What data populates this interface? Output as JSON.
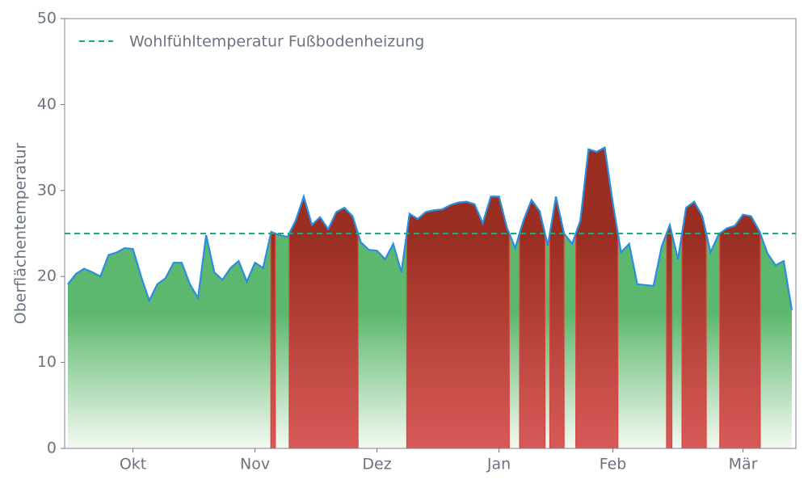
{
  "chart_data": {
    "type": "area",
    "ylabel": "Oberflächentemperatur",
    "categories": [
      null,
      null,
      null,
      null,
      null,
      null,
      null,
      null,
      "Okt",
      null,
      null,
      null,
      null,
      null,
      null,
      null,
      null,
      null,
      null,
      null,
      null,
      null,
      null,
      "Nov",
      null,
      null,
      null,
      null,
      null,
      null,
      null,
      null,
      null,
      null,
      null,
      null,
      null,
      null,
      "Dez",
      null,
      null,
      null,
      null,
      null,
      null,
      null,
      null,
      null,
      null,
      null,
      null,
      null,
      null,
      "Jan",
      null,
      null,
      null,
      null,
      null,
      null,
      null,
      null,
      null,
      null,
      null,
      null,
      null,
      "Feb",
      null,
      null,
      null,
      null,
      null,
      null,
      null,
      null,
      null,
      null,
      null,
      null,
      null,
      null,
      null,
      "Mär",
      null,
      null,
      null,
      null,
      null,
      null
    ],
    "series": [
      {
        "color": "#2a8ee0",
        "values": [
          19.1,
          20.3,
          20.9,
          20.5,
          20.0,
          22.5,
          22.8,
          23.3,
          23.2,
          20.0,
          17.2,
          19.1,
          19.8,
          21.6,
          21.6,
          19.1,
          17.5,
          24.8,
          20.5,
          19.6,
          21.0,
          21.8,
          19.4,
          21.6,
          21.0,
          25.2,
          24.8,
          24.6,
          26.5,
          29.3,
          26.0,
          26.9,
          25.5,
          27.5,
          28.0,
          27.0,
          24.0,
          23.1,
          23.0,
          22.0,
          23.8,
          20.5,
          27.3,
          26.7,
          27.5,
          27.7,
          27.8,
          28.3,
          28.6,
          28.7,
          28.4,
          26.2,
          29.3,
          29.3,
          25.6,
          23.3,
          26.5,
          28.9,
          27.6,
          23.6,
          29.3,
          25.0,
          23.8,
          26.5,
          34.8,
          34.5,
          35.0,
          28.5,
          22.8,
          23.8,
          19.1,
          19.0,
          18.9,
          23.5,
          26.0,
          22.0,
          28.0,
          28.7,
          27.0,
          22.8,
          24.9,
          25.6,
          25.9,
          27.2,
          27.0,
          25.3,
          22.7,
          21.3,
          21.8,
          16.1
        ]
      }
    ],
    "reference_line": {
      "value": 25,
      "label": "Wohlfühltemperatur Fußbodenheizung",
      "color": "#1aaa7e"
    },
    "below_color": "#5cb86e",
    "above_color": "#9a2e22",
    "ylim": [
      0,
      50
    ],
    "yticks": [
      0,
      10,
      20,
      30,
      40,
      50
    ],
    "legend": "upper left"
  }
}
